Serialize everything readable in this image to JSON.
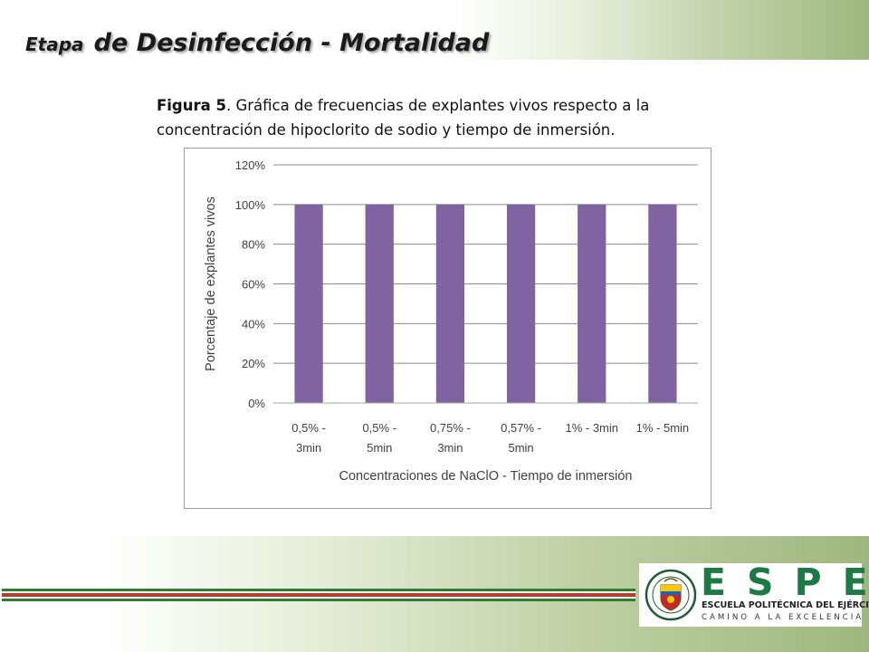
{
  "slide": {
    "title_small": "Etapa",
    "title_big": "de Desinfección - Mortalidad",
    "caption_bold": "Figura 5",
    "caption_text": ". Gráfica de frecuencias de explantes vivos respecto  a la concentración de hipoclorito de sodio y tiempo de inmersión."
  },
  "logo": {
    "letters": "ESPE",
    "name": "ESCUELA POLITÉCNICA DEL EJÉRCITO",
    "motto": "CAMINO A LA EXCELENCIA",
    "seal_text": "ESCUELA POLITÉCNICA DEL EJÉRCITO · ECUADOR",
    "color": "#1e7a45"
  },
  "colors": {
    "bar": "#8064a2",
    "stripe_green": "#2e7d32",
    "stripe_red": "#c0392b"
  },
  "chart_data": {
    "type": "bar",
    "categories": [
      [
        "0,5% -",
        "3min"
      ],
      [
        "0,5% -",
        "5min"
      ],
      [
        "0,75% -",
        "3min"
      ],
      [
        "0,57% -",
        "5min"
      ],
      [
        "1% - 3min"
      ],
      [
        "1% - 5min"
      ]
    ],
    "values": [
      100,
      100,
      100,
      100,
      100,
      100
    ],
    "ylim": [
      0,
      120
    ],
    "yticks": [
      0,
      20,
      40,
      60,
      80,
      100,
      120
    ],
    "ytick_suffix": "%",
    "xlabel": "Concentraciones de NaClO - Tiempo de inmersión",
    "ylabel": "Porcentaje de explantes vivos",
    "grid": true,
    "legend": "none"
  }
}
